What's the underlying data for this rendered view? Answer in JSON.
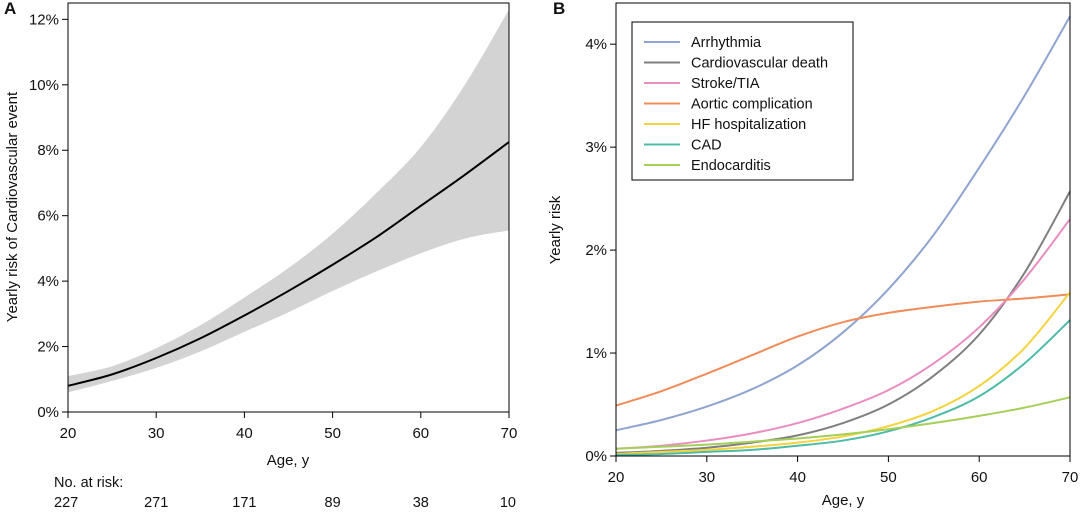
{
  "chart_data": [
    {
      "panel_label": "A",
      "type": "line",
      "xlabel": "Age, y",
      "ylabel": "Yearly risk of Cardiovascular event",
      "xlim": [
        20,
        70
      ],
      "ylim": [
        0,
        12.5
      ],
      "x_ticks": [
        20,
        30,
        40,
        50,
        60,
        70
      ],
      "y_ticks": [
        "0%",
        "2%",
        "4%",
        "6%",
        "8%",
        "10%",
        "12%"
      ],
      "y_tick_values": [
        0,
        2,
        4,
        6,
        8,
        10,
        12
      ],
      "series": [
        {
          "name": "Yearly risk",
          "color": "#000000",
          "x": [
            20,
            25,
            30,
            35,
            40,
            45,
            50,
            55,
            60,
            65,
            70
          ],
          "y": [
            0.8,
            1.15,
            1.65,
            2.25,
            2.95,
            3.7,
            4.5,
            5.35,
            6.3,
            7.25,
            8.25
          ]
        }
      ],
      "confidence_band": {
        "color": "#d3d3d3",
        "x": [
          20,
          25,
          30,
          35,
          40,
          45,
          50,
          55,
          60,
          65,
          70
        ],
        "lower": [
          0.6,
          0.95,
          1.35,
          1.85,
          2.45,
          3.05,
          3.7,
          4.3,
          4.85,
          5.3,
          5.55
        ],
        "upper": [
          1.1,
          1.4,
          1.95,
          2.65,
          3.5,
          4.4,
          5.45,
          6.7,
          8.1,
          10.0,
          12.3
        ]
      },
      "at_risk": {
        "title": "No. at risk:",
        "ages": [
          20,
          30,
          40,
          50,
          60,
          70
        ],
        "counts": [
          "227",
          "271",
          "171",
          "89",
          "38",
          "10"
        ]
      }
    },
    {
      "panel_label": "B",
      "type": "line",
      "xlabel": "Age, y",
      "ylabel": "Yearly risk",
      "xlim": [
        20,
        70
      ],
      "ylim": [
        0,
        4.4
      ],
      "x_ticks": [
        20,
        30,
        40,
        50,
        60,
        70
      ],
      "y_ticks": [
        "0%",
        "1%",
        "2%",
        "3%",
        "4%"
      ],
      "y_tick_values": [
        0,
        1,
        2,
        3,
        4
      ],
      "legend_position": "top-left",
      "series": [
        {
          "name": "Arrhythmia",
          "color": "#8fa4d0",
          "x": [
            20,
            25,
            30,
            35,
            40,
            45,
            50,
            55,
            60,
            65,
            70
          ],
          "y": [
            0.25,
            0.35,
            0.48,
            0.65,
            0.88,
            1.2,
            1.62,
            2.15,
            2.8,
            3.5,
            4.27
          ]
        },
        {
          "name": "Cardiovascular death",
          "color": "#7f7f7f",
          "x": [
            20,
            25,
            30,
            35,
            40,
            45,
            50,
            55,
            60,
            65,
            70
          ],
          "y": [
            0.03,
            0.05,
            0.08,
            0.13,
            0.2,
            0.32,
            0.5,
            0.78,
            1.18,
            1.78,
            2.57
          ]
        },
        {
          "name": "Stroke/TIA",
          "color": "#e98dc0",
          "x": [
            20,
            25,
            30,
            35,
            40,
            45,
            50,
            55,
            60,
            65,
            70
          ],
          "y": [
            0.07,
            0.1,
            0.15,
            0.22,
            0.32,
            0.46,
            0.64,
            0.9,
            1.25,
            1.72,
            2.3
          ]
        },
        {
          "name": "Aortic complication",
          "color": "#f08c5a",
          "x": [
            20,
            25,
            30,
            35,
            40,
            45,
            50,
            55,
            60,
            65,
            70
          ],
          "y": [
            0.49,
            0.63,
            0.8,
            0.98,
            1.16,
            1.3,
            1.39,
            1.45,
            1.5,
            1.53,
            1.57
          ]
        },
        {
          "name": "HF hospitalization",
          "color": "#f5d33c",
          "x": [
            20,
            25,
            30,
            35,
            40,
            45,
            50,
            55,
            60,
            65,
            70
          ],
          "y": [
            0.02,
            0.04,
            0.06,
            0.09,
            0.13,
            0.19,
            0.29,
            0.44,
            0.68,
            1.05,
            1.59
          ]
        },
        {
          "name": "CAD",
          "color": "#4dbba5",
          "x": [
            20,
            25,
            30,
            35,
            40,
            45,
            50,
            55,
            60,
            65,
            70
          ],
          "y": [
            0.01,
            0.02,
            0.04,
            0.06,
            0.1,
            0.15,
            0.24,
            0.38,
            0.58,
            0.9,
            1.32
          ]
        },
        {
          "name": "Endocarditis",
          "color": "#a6cf59",
          "x": [
            20,
            25,
            30,
            35,
            40,
            45,
            50,
            55,
            60,
            65,
            70
          ],
          "y": [
            0.07,
            0.09,
            0.11,
            0.14,
            0.17,
            0.21,
            0.26,
            0.32,
            0.39,
            0.47,
            0.57
          ]
        }
      ]
    }
  ]
}
